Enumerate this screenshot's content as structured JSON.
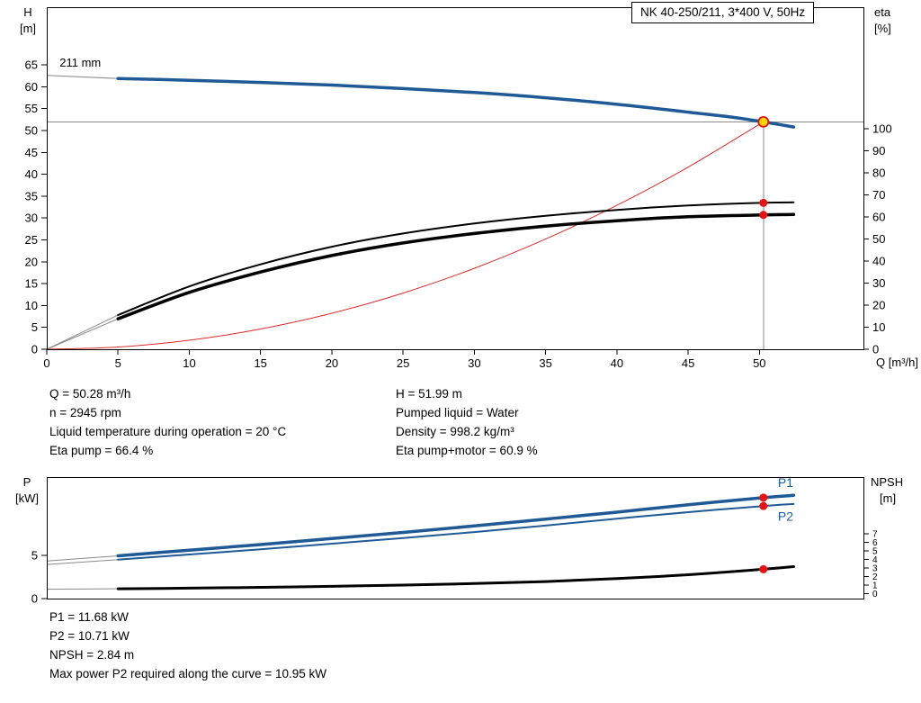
{
  "title_box": {
    "label": "NK 40-250/211, 3*400 V, 50Hz"
  },
  "colors": {
    "curve_blue": "#1f5a96",
    "curve_black": "#000000",
    "system_red": "#d92b2b",
    "marker_red": "#e41414",
    "duty_yellow": "#ffd500",
    "guide_gray": "#8a8a8a"
  },
  "results": {
    "left": [
      "Q = 50.28 m³/h",
      "n = 2945 rpm",
      "Liquid temperature during operation = 20 °C",
      "Eta pump = 66.4 %"
    ],
    "right": [
      "H = 51.99 m",
      "Pumped liquid = Water",
      "Density = 998.2 kg/m³",
      "Eta pump+motor = 60.9 %"
    ]
  },
  "power_results": [
    "P1 = 11.68 kW",
    "P2 = 10.71 kW",
    "NPSH = 2.84 m",
    "Max power P2 required along the curve = 10.95 kW"
  ],
  "chart_data": [
    {
      "type": "line",
      "title": "NK 40-250/211, 3*400 V, 50Hz",
      "x": {
        "label": "Q [m³/h]",
        "min": 0,
        "max": 57.3,
        "ticks": [
          0,
          5,
          10,
          15,
          20,
          25,
          30,
          35,
          40,
          45,
          50
        ]
      },
      "y_left": {
        "label": "H",
        "unit": "[m]",
        "min": 0,
        "max": 78.2,
        "ticks": [
          0,
          5,
          10,
          15,
          20,
          25,
          30,
          35,
          40,
          45,
          50,
          55,
          60,
          65
        ]
      },
      "y_right": {
        "label": "eta",
        "unit": "[%]",
        "min": 0,
        "max": 155.1,
        "ticks": [
          0,
          10,
          20,
          30,
          40,
          50,
          60,
          70,
          80,
          90,
          100
        ]
      },
      "annotations": [
        {
          "text": "211 mm",
          "q": 0.9,
          "v": 64.6,
          "axis": "left"
        }
      ],
      "series": [
        {
          "id": "system-curve",
          "name": "System curve",
          "axis": "left",
          "color_key": "system_red",
          "width": 1,
          "points": [
            [
              0,
              0
            ],
            [
              5,
              0.51
            ],
            [
              10,
              2.06
            ],
            [
              15,
              4.63
            ],
            [
              20,
              8.23
            ],
            [
              25,
              12.85
            ],
            [
              30,
              18.51
            ],
            [
              35,
              25.19
            ],
            [
              40,
              32.9
            ],
            [
              45,
              41.64
            ],
            [
              50.28,
              51.99
            ]
          ]
        },
        {
          "id": "eta-pump",
          "name": "Eta pump",
          "axis": "right",
          "color_key": "curve_black",
          "width": 2,
          "ext": [
            [
              0,
              0
            ],
            [
              5,
              15.5
            ]
          ],
          "points": [
            [
              5,
              15.5
            ],
            [
              10,
              28.5
            ],
            [
              15,
              38.5
            ],
            [
              20,
              46.5
            ],
            [
              25,
              52.5
            ],
            [
              30,
              57
            ],
            [
              35,
              60.5
            ],
            [
              40,
              63.2
            ],
            [
              45,
              65.2
            ],
            [
              50.28,
              66.4
            ],
            [
              52.4,
              66.6
            ]
          ]
        },
        {
          "id": "eta-pump-motor",
          "name": "Eta pump+motor",
          "axis": "right",
          "color_key": "curve_black",
          "width": 3.5,
          "ext": [
            [
              0,
              0
            ],
            [
              5,
              13.8
            ]
          ],
          "points": [
            [
              5,
              13.8
            ],
            [
              10,
              25.8
            ],
            [
              15,
              35
            ],
            [
              20,
              42.5
            ],
            [
              25,
              48.2
            ],
            [
              30,
              52.5
            ],
            [
              35,
              55.8
            ],
            [
              40,
              58.3
            ],
            [
              45,
              60.1
            ],
            [
              50.28,
              60.9
            ],
            [
              52.4,
              61.1
            ]
          ]
        },
        {
          "id": "head-211mm",
          "name": "Head 211 mm",
          "axis": "left",
          "color_key": "curve_blue",
          "width": 3.5,
          "ext": [
            [
              0,
              62.6
            ],
            [
              5,
              61.9
            ]
          ],
          "points": [
            [
              5,
              61.9
            ],
            [
              10,
              61.5
            ],
            [
              15,
              61.0
            ],
            [
              20,
              60.4
            ],
            [
              25,
              59.6
            ],
            [
              30,
              58.7
            ],
            [
              35,
              57.5
            ],
            [
              40,
              56.0
            ],
            [
              45,
              54.2
            ],
            [
              48,
              53.1
            ],
            [
              50.28,
              51.99
            ],
            [
              52.4,
              50.8
            ]
          ]
        }
      ],
      "guides": [
        {
          "type": "h",
          "v": 51.99,
          "from": 0,
          "to": 57.3,
          "axis": "left"
        },
        {
          "type": "v",
          "q": 50.28,
          "from": 0,
          "to": 51.99,
          "axis": "left"
        }
      ],
      "markers": [
        {
          "q": 50.28,
          "v": 66.4,
          "axis": "right",
          "type": "dot"
        },
        {
          "q": 50.28,
          "v": 60.9,
          "axis": "right",
          "type": "dot"
        },
        {
          "q": 50.28,
          "v": 51.99,
          "axis": "left",
          "type": "duty"
        }
      ],
      "duty_point": {
        "q_m3h": 50.28,
        "h_m": 51.99,
        "eta_pump_pct": 66.4,
        "eta_pump_motor_pct": 60.9
      }
    },
    {
      "type": "line",
      "title": "",
      "x": {
        "label": "",
        "min": 0,
        "max": 57.3,
        "ticks": []
      },
      "y_left": {
        "label": "P",
        "unit": "[kW]",
        "min": 0,
        "max": 14.06,
        "ticks": [
          0,
          5
        ]
      },
      "y_right": {
        "label": "NPSH",
        "unit": "[m]",
        "min": -0.6,
        "max": 13.65,
        "ticks": [
          0,
          1,
          2,
          3,
          4,
          5,
          6,
          7
        ]
      },
      "annotations": [
        {
          "text": "P1",
          "q": 51.3,
          "v": 12.9,
          "axis": "left",
          "color_key": "curve_blue",
          "size": 14
        },
        {
          "text": "P2",
          "q": 51.3,
          "v": 9.0,
          "axis": "left",
          "color_key": "curve_blue",
          "size": 14
        }
      ],
      "series": [
        {
          "id": "npsh",
          "name": "NPSH",
          "axis": "right",
          "color_key": "curve_black",
          "width": 3,
          "ext": [
            [
              0,
              0.5
            ],
            [
              5,
              0.55
            ]
          ],
          "points": [
            [
              5,
              0.55
            ],
            [
              10,
              0.62
            ],
            [
              15,
              0.72
            ],
            [
              20,
              0.84
            ],
            [
              25,
              0.98
            ],
            [
              30,
              1.16
            ],
            [
              35,
              1.4
            ],
            [
              40,
              1.75
            ],
            [
              45,
              2.2
            ],
            [
              50.28,
              2.84
            ],
            [
              52.4,
              3.15
            ]
          ]
        },
        {
          "id": "p2",
          "name": "P2",
          "axis": "left",
          "color_key": "curve_blue",
          "width": 2,
          "ext": [
            [
              0,
              3.95
            ],
            [
              5,
              4.5
            ]
          ],
          "points": [
            [
              5,
              4.5
            ],
            [
              10,
              5.1
            ],
            [
              15,
              5.7
            ],
            [
              20,
              6.35
            ],
            [
              25,
              7.0
            ],
            [
              30,
              7.7
            ],
            [
              35,
              8.45
            ],
            [
              40,
              9.25
            ],
            [
              45,
              10.0
            ],
            [
              50.28,
              10.71
            ],
            [
              52.4,
              10.95
            ]
          ]
        },
        {
          "id": "p1",
          "name": "P1",
          "axis": "left",
          "color_key": "curve_blue",
          "width": 3.5,
          "ext": [
            [
              0,
              4.35
            ],
            [
              5,
              4.95
            ]
          ],
          "points": [
            [
              5,
              4.95
            ],
            [
              10,
              5.6
            ],
            [
              15,
              6.25
            ],
            [
              20,
              6.95
            ],
            [
              25,
              7.65
            ],
            [
              30,
              8.4
            ],
            [
              35,
              9.2
            ],
            [
              40,
              10.0
            ],
            [
              45,
              10.85
            ],
            [
              50.28,
              11.68
            ],
            [
              52.4,
              11.95
            ]
          ]
        }
      ],
      "markers": [
        {
          "q": 50.28,
          "v": 11.68,
          "axis": "left",
          "type": "dot"
        },
        {
          "q": 50.28,
          "v": 10.71,
          "axis": "left",
          "type": "dot"
        },
        {
          "q": 50.28,
          "v": 2.84,
          "axis": "right",
          "type": "dot"
        }
      ],
      "duty_point": {
        "q_m3h": 50.28,
        "p1_kw": 11.68,
        "p2_kw": 10.71,
        "npsh_m": 2.84,
        "max_p2_kw": 10.95
      }
    }
  ]
}
